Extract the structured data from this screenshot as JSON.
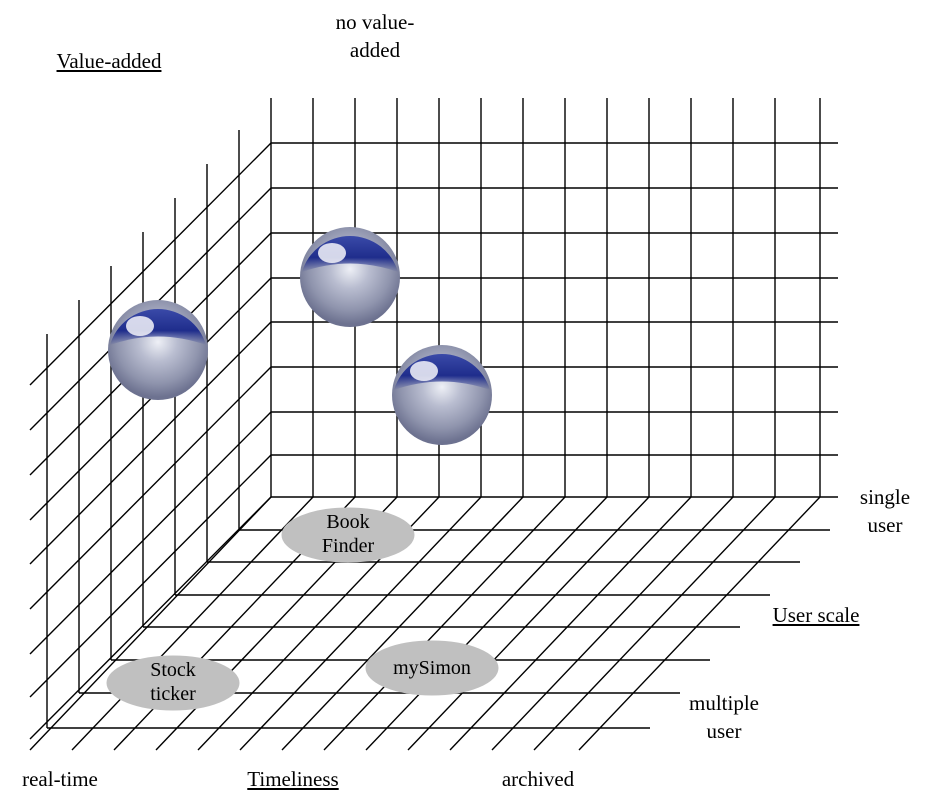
{
  "labels": {
    "value_added": "Value-added",
    "no_value_added_line1": "no value-",
    "no_value_added_line2": "added",
    "single_user_line1": "single",
    "single_user_line2": "user",
    "user_scale": "User scale",
    "multiple_user_line1": "multiple",
    "multiple_user_line2": "user",
    "real_time": "real-time",
    "timeliness": "Timeliness",
    "archived": "archived"
  },
  "items": {
    "book_finder_line1": "Book",
    "book_finder_line2": "Finder",
    "stock_ticker_line1": "Stock",
    "stock_ticker_line2": "ticker",
    "mysimon": "mySimon"
  },
  "colors": {
    "grid_line": "#000000",
    "oval_fill": "#c0c0c0",
    "sphere_dark": "#1c2a86",
    "sphere_light": "#c4c8d8"
  }
}
